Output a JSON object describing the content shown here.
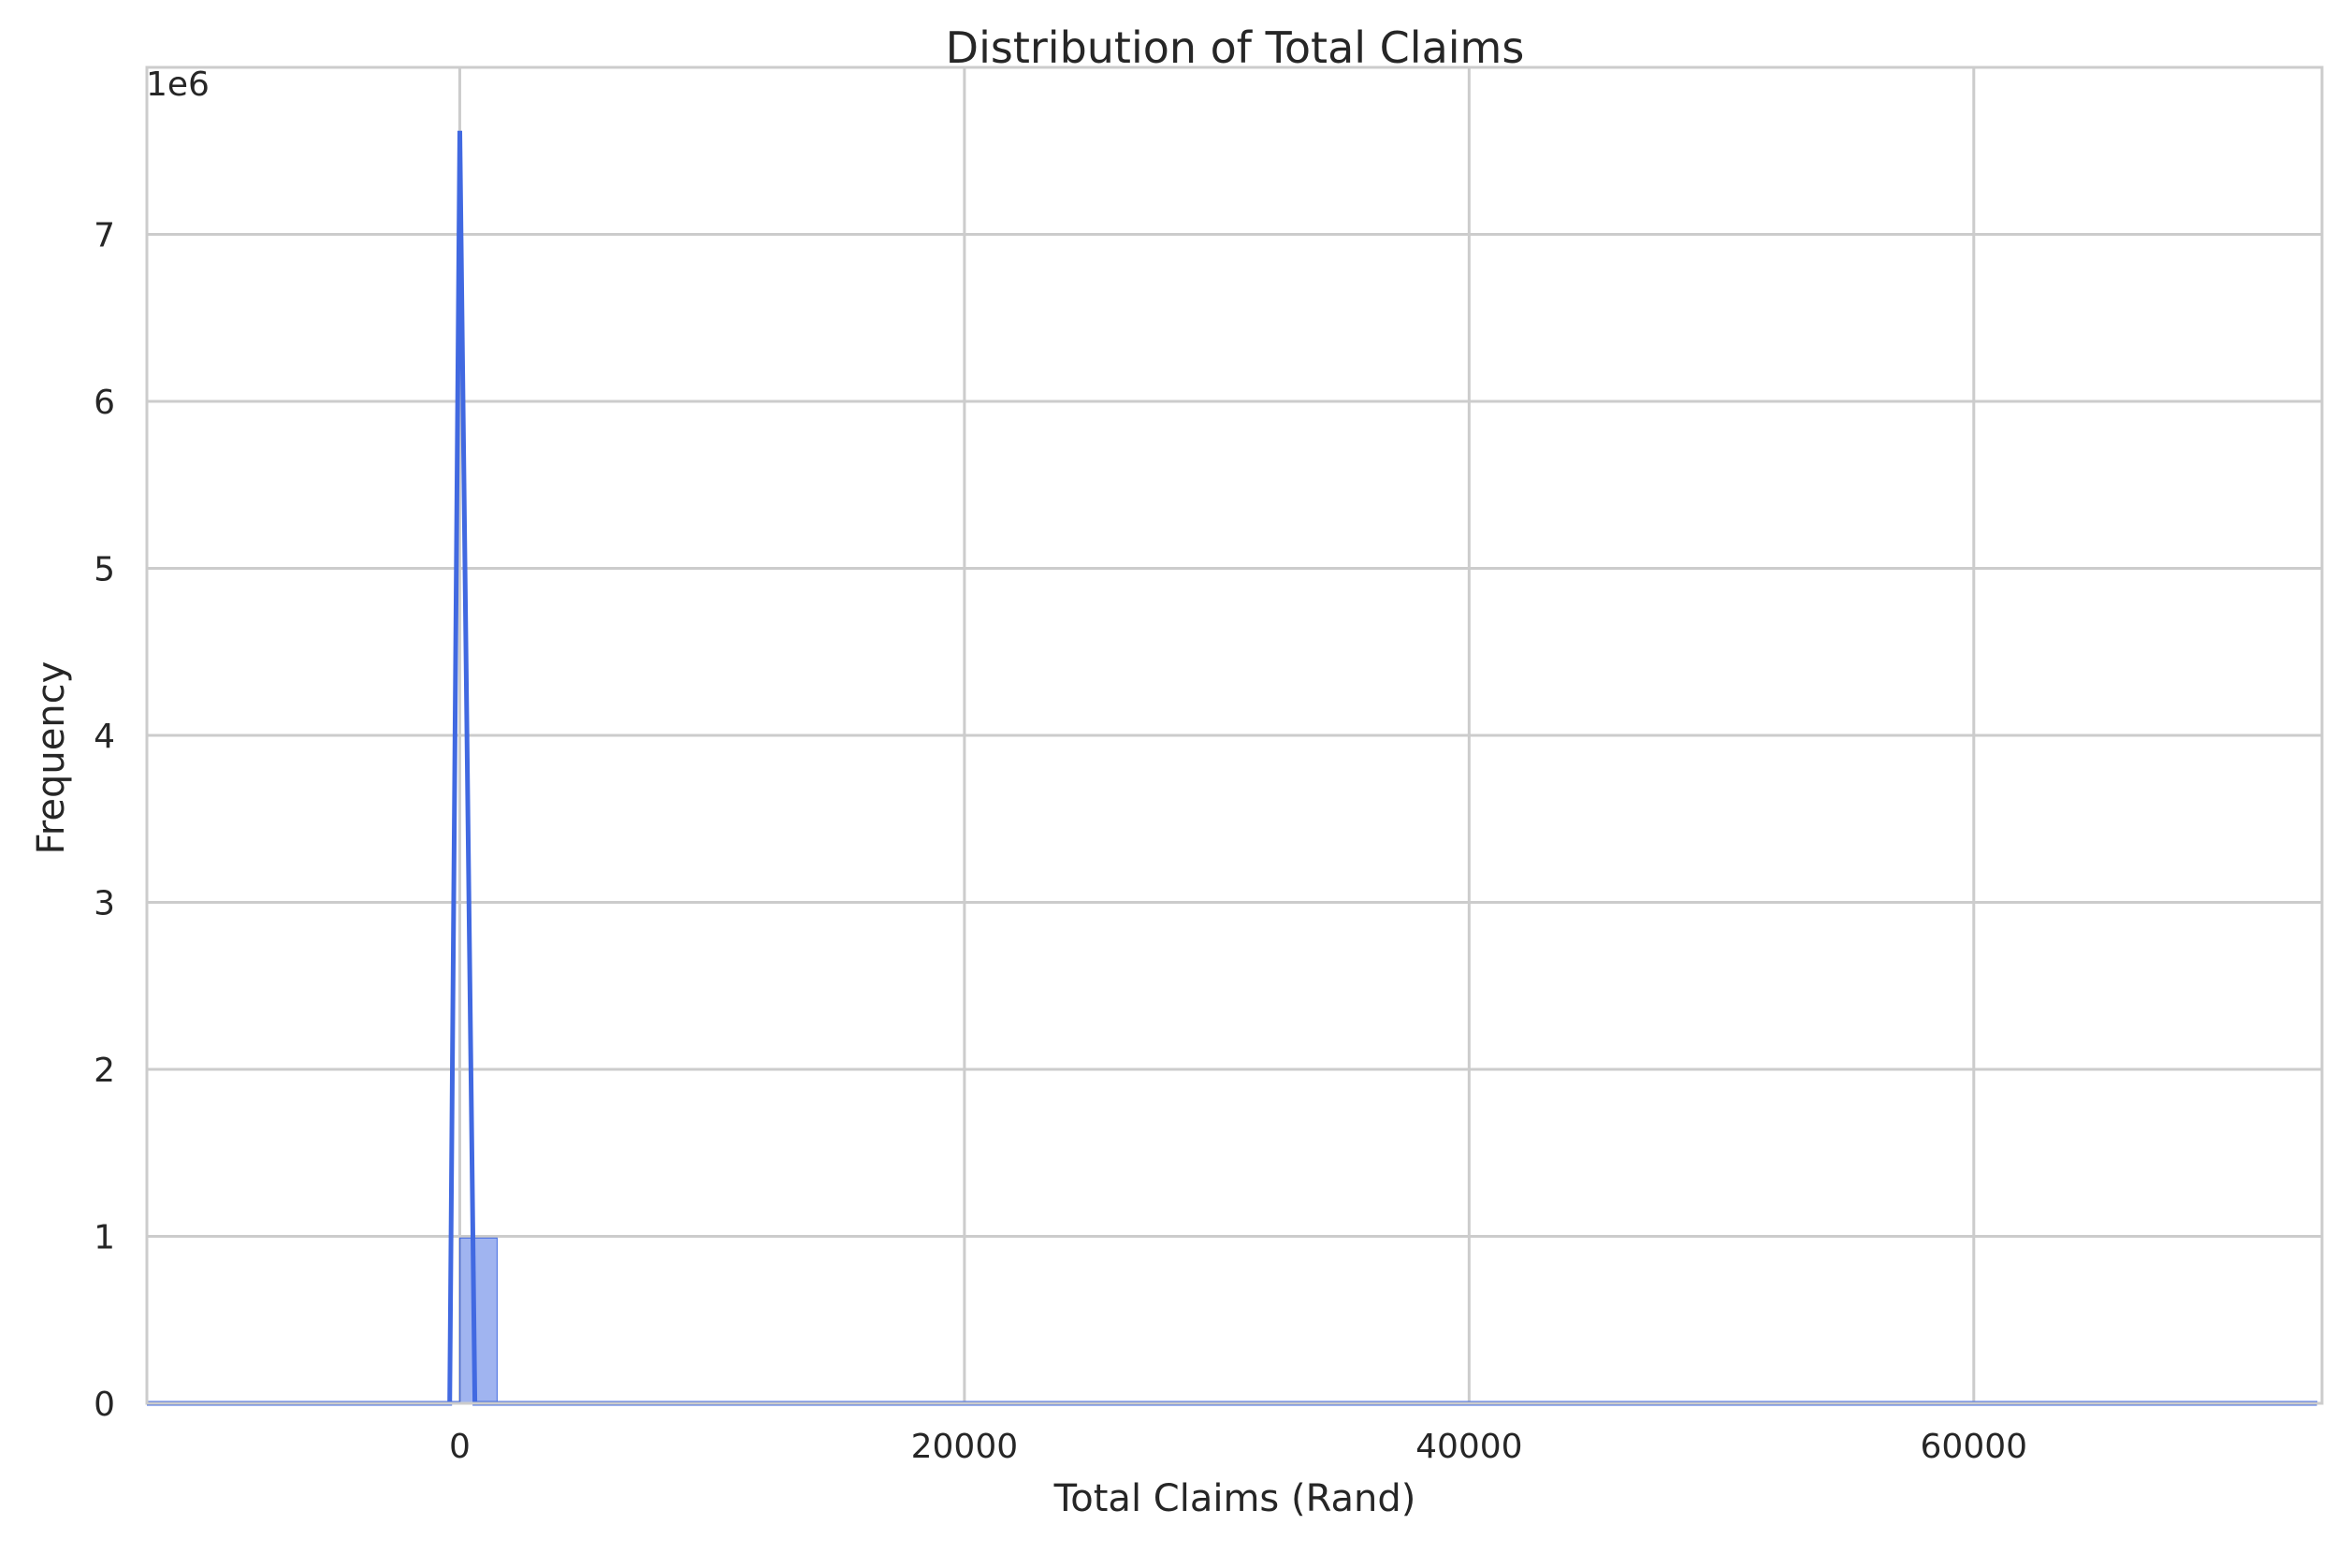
{
  "chart_data": {
    "type": "histogram",
    "title": "Distribution of Total Claims",
    "xlabel": "Total Claims (Rand)",
    "ylabel": "Frequency",
    "y_scale_label": "1e6",
    "xlim": [
      -12400,
      73800
    ],
    "ylim": [
      0,
      8000000
    ],
    "x_ticks": [
      0,
      20000,
      40000,
      60000
    ],
    "x_tick_labels": [
      "0",
      "20000",
      "40000",
      "60000"
    ],
    "y_ticks": [
      0,
      1000000,
      2000000,
      3000000,
      4000000,
      5000000,
      6000000,
      7000000
    ],
    "y_tick_labels": [
      "0",
      "1",
      "2",
      "3",
      "4",
      "5",
      "6",
      "7"
    ],
    "grid": true,
    "colors": {
      "bar": "#4169e1",
      "kde": "#4169e1",
      "grid": "#cccccc",
      "spine": "#cccccc"
    },
    "bins": [
      {
        "x0": -8000,
        "x1": 0,
        "value": 0
      },
      {
        "x0": 0,
        "x1": 1480,
        "value": 990000
      },
      {
        "x0": 1480,
        "x1": 73600,
        "value": 4000
      }
    ],
    "kde": {
      "x": [
        -12400,
        -400,
        0,
        600,
        73600
      ],
      "y": [
        0,
        0,
        7620000,
        0,
        0
      ]
    }
  }
}
